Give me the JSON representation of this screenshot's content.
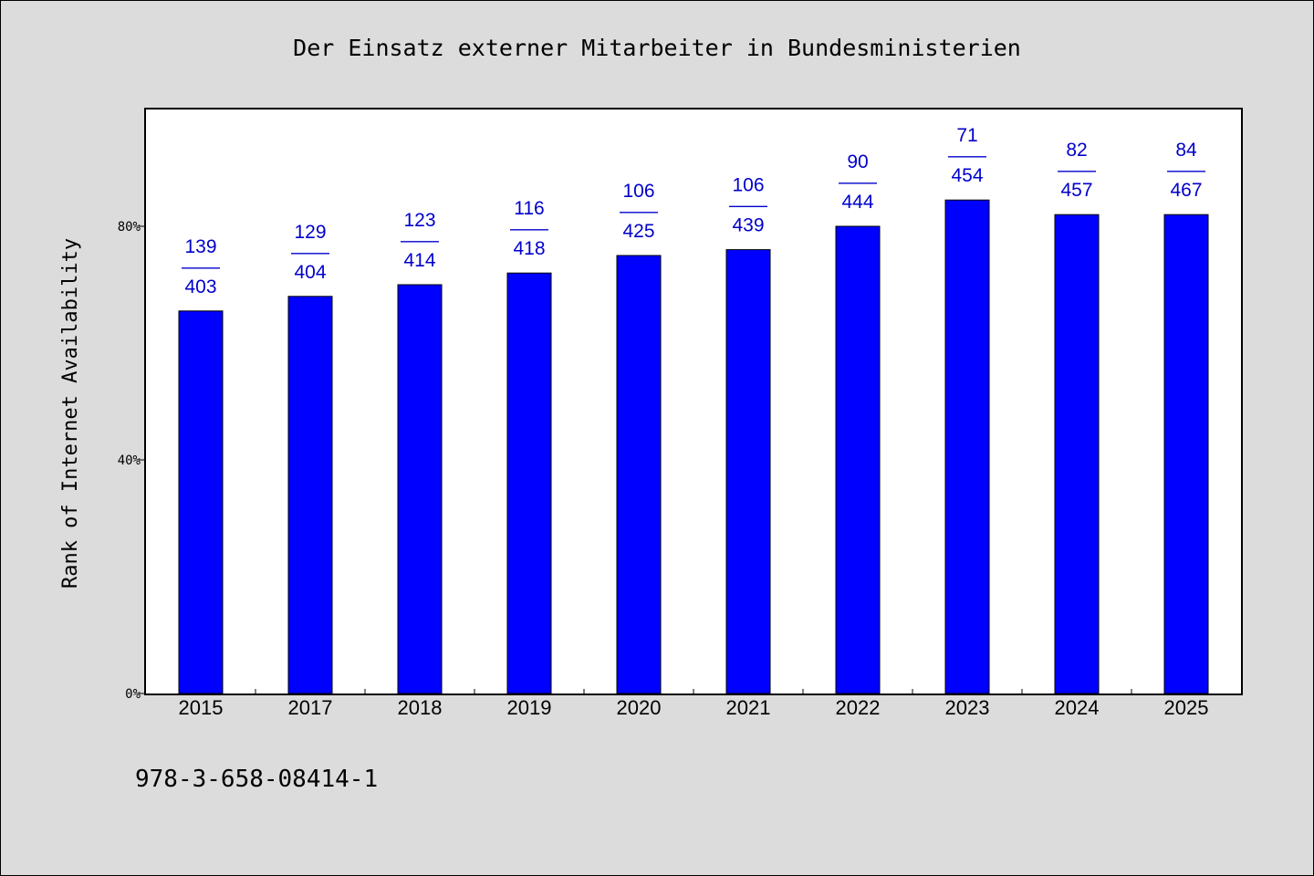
{
  "colors": {
    "background": "#dcdcdc",
    "plot_area": "#ffffff",
    "bar": "#0000ff",
    "data_label": "#0000cc"
  },
  "footer": {
    "isbn": "978-3-658-08414-1"
  },
  "chart_data": {
    "type": "bar",
    "title": "Der Einsatz externer Mitarbeiter in Bundesministerien",
    "ylabel": "Rank of Internet Availability",
    "xlabel": "",
    "categories": [
      "2015",
      "2017",
      "2018",
      "2019",
      "2020",
      "2021",
      "2022",
      "2023",
      "2024",
      "2025"
    ],
    "values": [
      65.5,
      68,
      70,
      72,
      75,
      76,
      80,
      84.5,
      82,
      82
    ],
    "ylim": [
      0,
      100
    ],
    "yticks": [
      {
        "value": 0,
        "label": "0%"
      },
      {
        "value": 40,
        "label": "40%"
      },
      {
        "value": 80,
        "label": "80%"
      }
    ],
    "data_labels": [
      {
        "top": "139",
        "sep": "——",
        "bottom": "403"
      },
      {
        "top": "129",
        "sep": "——",
        "bottom": "404"
      },
      {
        "top": "123",
        "sep": "——",
        "bottom": "414"
      },
      {
        "top": "116",
        "sep": "——",
        "bottom": "418"
      },
      {
        "top": "106",
        "sep": "——",
        "bottom": "425"
      },
      {
        "top": "106",
        "sep": "——",
        "bottom": "439"
      },
      {
        "top": "90",
        "sep": "——",
        "bottom": "444"
      },
      {
        "top": "71",
        "sep": "——",
        "bottom": "454"
      },
      {
        "top": "82",
        "sep": "——",
        "bottom": "457"
      },
      {
        "top": "84",
        "sep": "——",
        "bottom": "467"
      }
    ],
    "grid": false,
    "legend": "none"
  }
}
